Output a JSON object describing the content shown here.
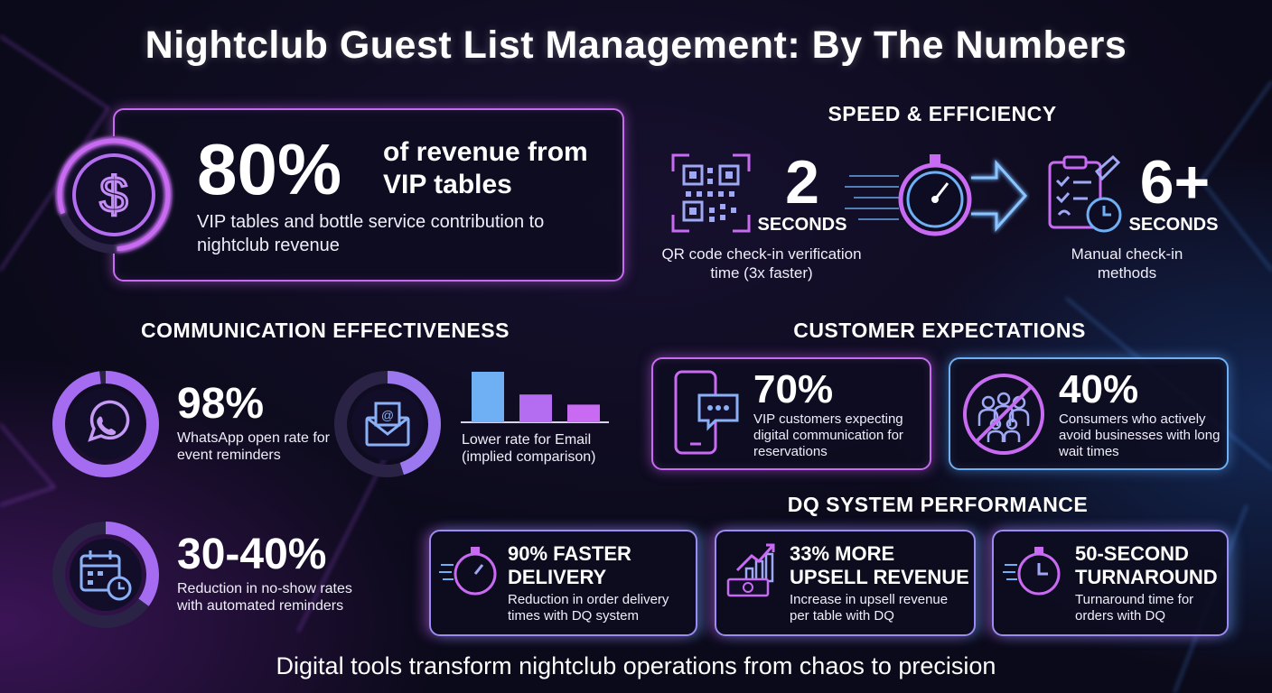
{
  "title": "Nightclub Guest List Management: By The Numbers",
  "vip_revenue": {
    "value": "80%",
    "headline": "of revenue from VIP tables",
    "description": "VIP tables and bottle service contribution to nightclub revenue",
    "icon": "dollar-icon"
  },
  "speed": {
    "heading": "SPEED & EFFICIENCY",
    "qr": {
      "value": "2",
      "unit": "SECONDS",
      "description": "QR code check-in verification time (3x faster)",
      "icon": "qr-code-icon"
    },
    "manual": {
      "value": "6+",
      "unit": "SECONDS",
      "description": "Manual check-in methods",
      "icon": "clipboard-clock-icon"
    }
  },
  "communication": {
    "heading": "COMMUNICATION EFFECTIVENESS",
    "whatsapp": {
      "value": "98%",
      "description": "WhatsApp open rate for event reminders",
      "icon": "whatsapp-icon",
      "ring_fraction": 0.98
    },
    "email": {
      "description": "Lower rate for Email (implied comparison)",
      "icon": "email-icon",
      "ring_fraction": 0.45,
      "bars": [
        1.0,
        0.55,
        0.35
      ]
    },
    "noshow": {
      "value": "30-40%",
      "description": "Reduction in no-show rates with automated reminders",
      "icon": "calendar-clock-icon",
      "ring_fraction": 0.35
    }
  },
  "expectations": {
    "heading": "CUSTOMER EXPECTATIONS",
    "digital": {
      "value": "70%",
      "description": "VIP customers expecting digital communication for reservations",
      "icon": "smartphone-chat-icon"
    },
    "wait": {
      "value": "40%",
      "description": "Consumers who actively avoid businesses with long wait times",
      "icon": "no-crowd-icon"
    }
  },
  "dq": {
    "heading": "DQ SYSTEM PERFORMANCE",
    "cards": [
      {
        "title": "90% FASTER DELIVERY",
        "description": "Reduction in order delivery times with DQ system",
        "icon": "stopwatch-icon"
      },
      {
        "title": "33% MORE UPSELL REVENUE",
        "description": "Increase in upsell revenue per table with DQ",
        "icon": "money-growth-icon"
      },
      {
        "title": "50-SECOND TURNAROUND",
        "description": "Turnaround time for orders with DQ",
        "icon": "stopwatch-icon"
      }
    ]
  },
  "footer": "Digital tools transform nightclub operations from chaos to precision",
  "colors": {
    "pink": "#c96bf2",
    "blue": "#6fb0f4",
    "background": "#0b0a1a"
  }
}
